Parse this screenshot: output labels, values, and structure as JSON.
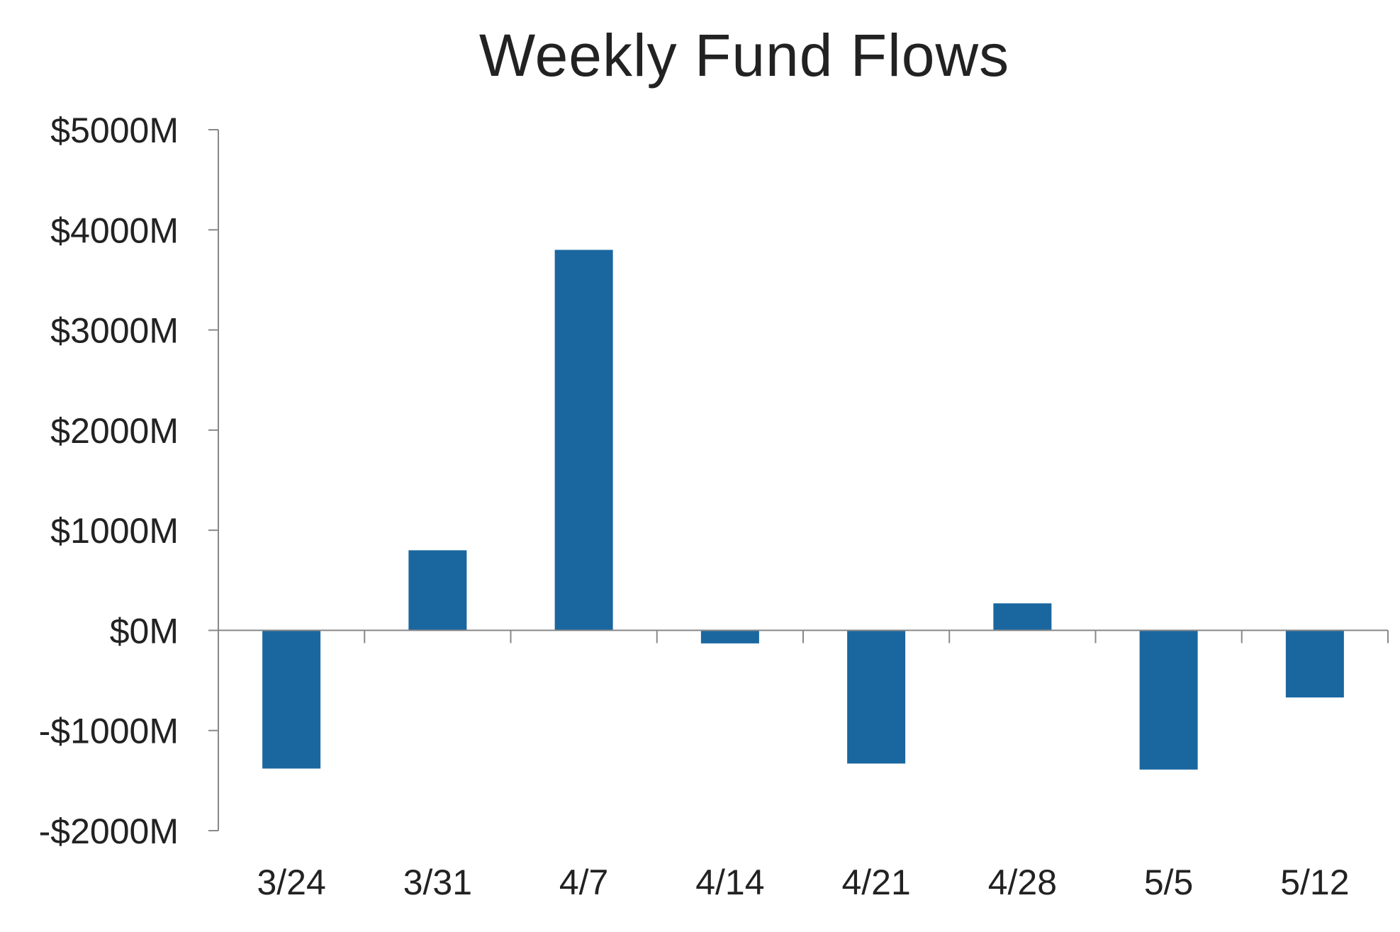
{
  "chart_data": {
    "type": "bar",
    "title": "Weekly Fund Flows",
    "xlabel": "",
    "ylabel": "",
    "categories": [
      "3/24",
      "3/31",
      "4/7",
      "4/14",
      "4/21",
      "4/28",
      "5/5",
      "5/12"
    ],
    "values": [
      -1380,
      800,
      3800,
      -130,
      -1330,
      270,
      -1390,
      -670
    ],
    "ylim": [
      -2000,
      5000
    ],
    "yticks": [
      5000,
      4000,
      3000,
      2000,
      1000,
      0,
      -1000,
      -2000
    ],
    "ytick_labels": [
      "$5000M",
      "$4000M",
      "$3000M",
      "$2000M",
      "$1000M",
      "$0M",
      "-$1000M",
      "-$2000M"
    ],
    "grid": false,
    "legend": "none",
    "bar_color": "#1a67a0",
    "axis_color": "#888888"
  }
}
